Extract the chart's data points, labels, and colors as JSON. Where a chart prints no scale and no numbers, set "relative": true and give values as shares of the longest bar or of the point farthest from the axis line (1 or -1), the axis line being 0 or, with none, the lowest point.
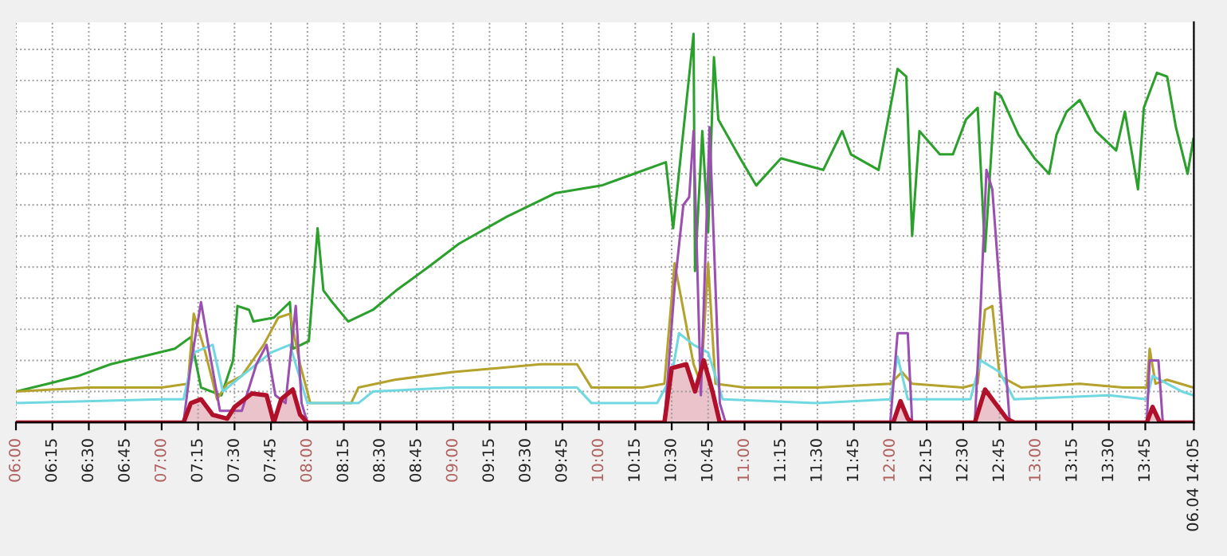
{
  "chart_data": {
    "type": "line",
    "relative": true,
    "grid": true,
    "tick_labels": "x",
    "marker": "none",
    "line_style": "solid",
    "xlim": [
      6.0,
      14.0833
    ],
    "xticks": [
      {
        "value": 6.0,
        "label": "06:00"
      },
      {
        "value": 6.25,
        "label": "06:15"
      },
      {
        "value": 6.5,
        "label": "06:30"
      },
      {
        "value": 6.75,
        "label": "06:45"
      },
      {
        "value": 7.0,
        "label": "07:00"
      },
      {
        "value": 7.25,
        "label": "07:15"
      },
      {
        "value": 7.5,
        "label": "07:30"
      },
      {
        "value": 7.75,
        "label": "07:45"
      },
      {
        "value": 8.0,
        "label": "08:00"
      },
      {
        "value": 8.25,
        "label": "08:15"
      },
      {
        "value": 8.5,
        "label": "08:30"
      },
      {
        "value": 8.75,
        "label": "08:45"
      },
      {
        "value": 9.0,
        "label": "09:00"
      },
      {
        "value": 9.25,
        "label": "09:15"
      },
      {
        "value": 9.5,
        "label": "09:30"
      },
      {
        "value": 9.75,
        "label": "09:45"
      },
      {
        "value": 10.0,
        "label": "10:00"
      },
      {
        "value": 10.25,
        "label": "10:15"
      },
      {
        "value": 10.5,
        "label": "10:30"
      },
      {
        "value": 10.75,
        "label": "10:45"
      },
      {
        "value": 11.0,
        "label": "11:00"
      },
      {
        "value": 11.25,
        "label": "11:15"
      },
      {
        "value": 11.5,
        "label": "11:30"
      },
      {
        "value": 11.75,
        "label": "11:45"
      },
      {
        "value": 12.0,
        "label": "12:00"
      },
      {
        "value": 12.25,
        "label": "12:15"
      },
      {
        "value": 12.5,
        "label": "12:30"
      },
      {
        "value": 12.75,
        "label": "12:45"
      },
      {
        "value": 13.0,
        "label": "13:00"
      },
      {
        "value": 13.25,
        "label": "13:15"
      },
      {
        "value": 13.5,
        "label": "13:30"
      },
      {
        "value": 13.75,
        "label": "13:45"
      },
      {
        "value": 14.0833,
        "label": "06.04 14:05"
      }
    ],
    "series": [
      {
        "color": "#2ca02c",
        "x": [
          6.0,
          6.22,
          6.43,
          6.65,
          6.87,
          7.09,
          7.2,
          7.27,
          7.41,
          7.49,
          7.52,
          7.6,
          7.63,
          7.77,
          7.88,
          7.9,
          8.01,
          8.07,
          8.11,
          8.17,
          8.28,
          8.45,
          8.61,
          8.83,
          9.04,
          9.37,
          9.7,
          10.02,
          10.24,
          10.46,
          10.51,
          10.65,
          10.66,
          10.71,
          10.75,
          10.79,
          10.82,
          10.97,
          11.08,
          11.25,
          11.54,
          11.67,
          11.73,
          11.92,
          12.05,
          12.11,
          12.15,
          12.2,
          12.34,
          12.43,
          12.52,
          12.6,
          12.65,
          12.72,
          12.76,
          12.88,
          12.99,
          13.09,
          13.14,
          13.21,
          13.3,
          13.41,
          13.55,
          13.61,
          13.7,
          13.74,
          13.83,
          13.9,
          13.96,
          14.04,
          14.08
        ],
        "values": [
          0.08,
          0.1,
          0.12,
          0.15,
          0.17,
          0.19,
          0.22,
          0.09,
          0.07,
          0.16,
          0.3,
          0.29,
          0.26,
          0.27,
          0.31,
          0.19,
          0.21,
          0.5,
          0.34,
          0.31,
          0.26,
          0.29,
          0.34,
          0.4,
          0.46,
          0.53,
          0.59,
          0.61,
          0.64,
          0.67,
          0.5,
          1.0,
          0.39,
          0.75,
          0.49,
          0.94,
          0.78,
          0.68,
          0.61,
          0.68,
          0.65,
          0.75,
          0.69,
          0.65,
          0.91,
          0.89,
          0.48,
          0.75,
          0.69,
          0.69,
          0.78,
          0.81,
          0.44,
          0.85,
          0.84,
          0.74,
          0.68,
          0.64,
          0.74,
          0.8,
          0.83,
          0.75,
          0.7,
          0.8,
          0.6,
          0.81,
          0.9,
          0.89,
          0.76,
          0.64,
          0.73
        ]
      },
      {
        "color": "#b5a22c",
        "x": [
          6.0,
          6.5,
          7.0,
          7.18,
          7.22,
          7.3,
          7.38,
          7.45,
          7.55,
          7.7,
          7.8,
          7.88,
          7.95,
          8.02,
          8.3,
          8.35,
          8.6,
          9.0,
          9.3,
          9.6,
          9.85,
          9.95,
          10.3,
          10.45,
          10.52,
          10.6,
          10.65,
          10.7,
          10.75,
          10.8,
          11.0,
          11.5,
          12.0,
          12.08,
          12.15,
          12.5,
          12.6,
          12.65,
          12.7,
          12.75,
          12.9,
          13.3,
          13.6,
          13.76,
          13.78,
          13.82,
          13.9,
          14.08
        ],
        "values": [
          0.08,
          0.09,
          0.09,
          0.1,
          0.28,
          0.18,
          0.06,
          0.1,
          0.12,
          0.2,
          0.27,
          0.28,
          0.15,
          0.05,
          0.05,
          0.09,
          0.11,
          0.13,
          0.14,
          0.15,
          0.15,
          0.09,
          0.09,
          0.1,
          0.41,
          0.25,
          0.15,
          0.1,
          0.41,
          0.1,
          0.09,
          0.09,
          0.1,
          0.13,
          0.1,
          0.09,
          0.1,
          0.29,
          0.3,
          0.12,
          0.09,
          0.1,
          0.09,
          0.09,
          0.19,
          0.1,
          0.11,
          0.09
        ]
      },
      {
        "color": "#6fd8e0",
        "x": [
          6.0,
          7.0,
          7.15,
          7.22,
          7.35,
          7.42,
          7.55,
          7.75,
          7.88,
          8.0,
          8.35,
          8.45,
          9.0,
          9.5,
          9.85,
          9.95,
          10.4,
          10.5,
          10.55,
          10.65,
          10.75,
          10.85,
          11.5,
          12.0,
          12.05,
          12.12,
          12.55,
          12.62,
          12.75,
          12.85,
          13.5,
          13.76,
          13.8,
          13.9,
          14.0,
          14.08
        ],
        "values": [
          0.05,
          0.06,
          0.06,
          0.18,
          0.2,
          0.08,
          0.12,
          0.18,
          0.2,
          0.05,
          0.05,
          0.08,
          0.09,
          0.09,
          0.09,
          0.05,
          0.05,
          0.12,
          0.23,
          0.2,
          0.18,
          0.06,
          0.05,
          0.06,
          0.17,
          0.06,
          0.06,
          0.16,
          0.13,
          0.06,
          0.07,
          0.06,
          0.12,
          0.1,
          0.08,
          0.07
        ]
      },
      {
        "color": "#9b4fb0",
        "x": [
          6.0,
          7.15,
          7.2,
          7.27,
          7.32,
          7.4,
          7.55,
          7.65,
          7.72,
          7.78,
          7.85,
          7.92,
          7.96,
          8.0,
          10.45,
          10.52,
          10.58,
          10.62,
          10.65,
          10.7,
          10.76,
          10.83,
          10.87,
          12.0,
          12.05,
          12.12,
          12.15,
          12.58,
          12.62,
          12.66,
          12.7,
          12.78,
          12.82,
          13.76,
          13.78,
          13.84,
          13.87,
          14.08
        ],
        "values": [
          0,
          0,
          0.15,
          0.31,
          0.2,
          0.03,
          0.03,
          0.15,
          0.2,
          0.07,
          0.05,
          0.3,
          0.05,
          0,
          0,
          0.35,
          0.56,
          0.58,
          0.75,
          0.07,
          0.76,
          0.05,
          0,
          0,
          0.23,
          0.23,
          0,
          0,
          0.3,
          0.65,
          0.6,
          0.2,
          0,
          0,
          0.16,
          0.16,
          0,
          0
        ]
      },
      {
        "type": "area",
        "color": "#b0102a",
        "x": [
          6.0,
          7.15,
          7.2,
          7.27,
          7.35,
          7.45,
          7.5,
          7.62,
          7.72,
          7.77,
          7.82,
          7.9,
          7.95,
          8.0,
          10.45,
          10.5,
          10.6,
          10.66,
          10.72,
          10.78,
          10.83,
          12.02,
          12.07,
          12.12,
          12.15,
          12.58,
          12.65,
          12.72,
          12.8,
          12.85,
          13.76,
          13.8,
          13.85,
          14.08
        ],
        "values": [
          0,
          0,
          0.05,
          0.06,
          0.02,
          0.01,
          0.04,
          0.075,
          0.07,
          0,
          0.06,
          0.085,
          0.02,
          0,
          0,
          0.14,
          0.15,
          0.08,
          0.16,
          0.08,
          0,
          0,
          0.055,
          0.01,
          0,
          0,
          0.085,
          0.05,
          0.01,
          0,
          0,
          0.04,
          0,
          0
        ]
      }
    ]
  }
}
